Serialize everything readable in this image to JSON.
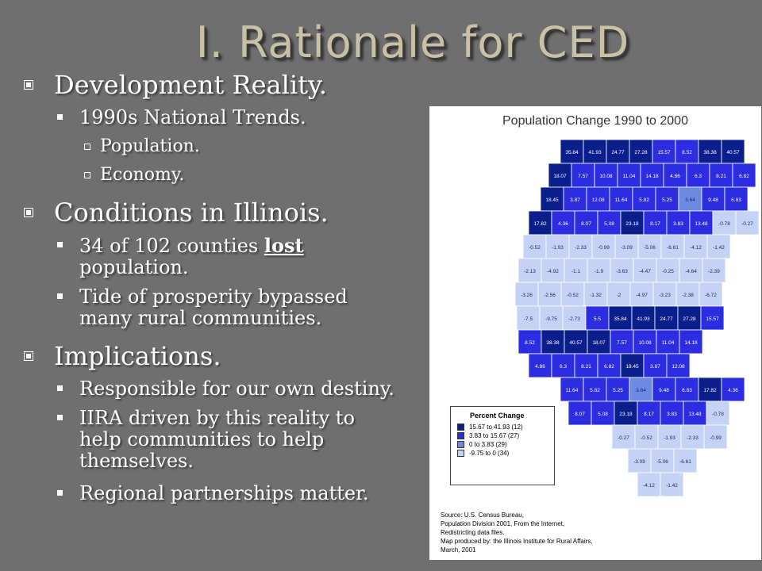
{
  "slide": {
    "title": "I. Rationale for CED",
    "bullets": {
      "development": "Development Reality.",
      "trends": "1990s National Trends.",
      "population": "Population.",
      "economy": "Economy.",
      "conditions": "Conditions in Illinois.",
      "counties_pre": "34 of 102 counties ",
      "counties_lost": "lost",
      "counties_post": " population.",
      "tide": "Tide of prosperity bypassed many rural communities.",
      "implications": "Implications.",
      "responsible": "Responsible for our own destiny.",
      "iira": "IIRA driven by this reality to help communities to help themselves.",
      "regional": "Regional partnerships matter."
    }
  },
  "map": {
    "title": "Population Change 1990 to 2000",
    "legend": {
      "title": "Percent Change",
      "items": [
        {
          "label": "15.67 to 41.93  (12)",
          "color": "#0b1f8c"
        },
        {
          "label": "3.83 to 15.67  (27)",
          "color": "#2c2ce0"
        },
        {
          "label": "0    to  3.83  (29)",
          "color": "#6b8ae0"
        },
        {
          "label": "-9.75 to  0    (34)",
          "color": "#c4d3f5"
        }
      ]
    },
    "source": [
      "Source: U.S. Census Bureau,",
      "Population Division 2001, From the Internet,",
      "Redistricting data files.",
      "Map produced by: the Illinois Institute for Rural Affairs,",
      "March, 2001"
    ],
    "county_values": [
      "35.84",
      "41.93",
      "24.77",
      "27.28",
      "15.57",
      "8.52",
      "38.38",
      "40.57",
      "18.07",
      "7.57",
      "10.08",
      "11.04",
      "14.18",
      "4.86",
      "6.3",
      "8.21",
      "6.82",
      "18.45",
      "3.87",
      "12.08",
      "11.64",
      "5.82",
      "5.25",
      "3.64",
      "9.48",
      "6.83",
      "17.82",
      "4.36",
      "8.07",
      "5.08",
      "23.18",
      "8.17",
      "3.83",
      "13.48",
      "-0.78",
      "-0.27",
      "-0.52",
      "-1.93",
      "-2.33",
      "-0.99",
      "-3.09",
      "-5.06",
      "-6.61",
      "-4.12",
      "-1.42",
      "-2.13",
      "-4.92",
      "-1.1",
      "-1.9",
      "-3.63",
      "-4.47",
      "-0.25",
      "-4.64",
      "-2.39",
      "-3.26",
      "-2.56",
      "-0.52",
      "-1.32",
      "-2",
      "-4.97",
      "-3.23",
      "-2.38",
      "-6.72",
      "-7.5",
      "-9.75",
      "-2.73",
      "5.5"
    ]
  }
}
